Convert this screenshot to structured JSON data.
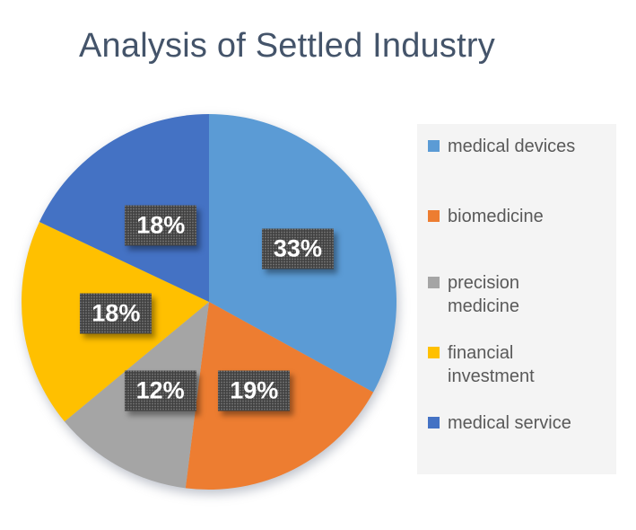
{
  "header": {
    "title": "Analysis of Settled Industry",
    "title_color": "#44546A"
  },
  "chart_data": {
    "type": "pie",
    "title": "Analysis of Settled Industry",
    "categories": [
      "medical devices",
      "biomedicine",
      "precision medicine",
      "financial investment",
      "medical service"
    ],
    "values": [
      33,
      19,
      12,
      18,
      18
    ],
    "data_labels": [
      "33%",
      "19%",
      "12%",
      "18%",
      "18%"
    ],
    "colors": [
      "#5B9BD5",
      "#ED7D31",
      "#A5A5A5",
      "#FFC000",
      "#4472C4"
    ],
    "start_angle_deg": 0,
    "direction": "clockwise",
    "legend_position": "right",
    "data_label_style": {
      "background": "#3F3F3F",
      "text_color": "#FFFFFF",
      "pattern": "dotted"
    }
  },
  "legend": {
    "background": "#F4F4F4",
    "text_color": "#595959",
    "items": [
      {
        "label": "medical devices",
        "color": "#5B9BD5"
      },
      {
        "label": "biomedicine",
        "color": "#ED7D31"
      },
      {
        "label": "precision\nmedicine",
        "color": "#A5A5A5"
      },
      {
        "label": "financial\ninvestment",
        "color": "#FFC000"
      },
      {
        "label": "medical service",
        "color": "#4472C4"
      }
    ]
  }
}
